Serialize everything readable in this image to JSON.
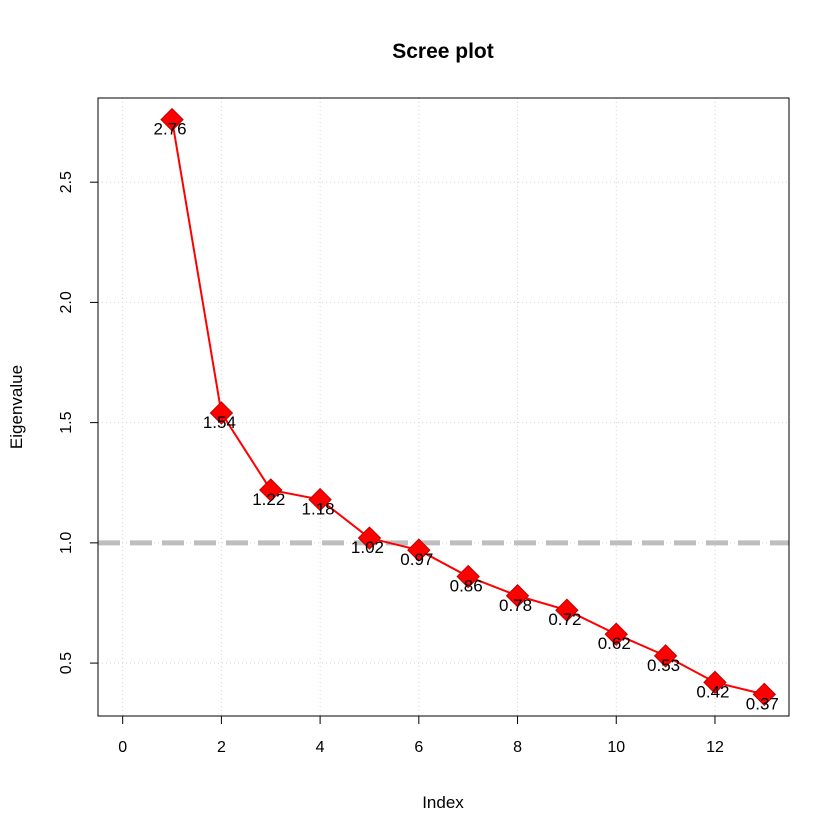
{
  "chart_data": {
    "type": "line",
    "title": "Scree plot",
    "xlabel": "Index",
    "ylabel": "Eigenvalue",
    "xlim": [
      -0.5,
      13.5
    ],
    "ylim": [
      0.28,
      2.85
    ],
    "x_ticks": [
      "0",
      "2",
      "4",
      "6",
      "8",
      "10",
      "12"
    ],
    "y_ticks": [
      "0.5",
      "1.0",
      "1.5",
      "2.0",
      "2.5"
    ],
    "grid": true,
    "reference_line": {
      "y": 1.0,
      "color": "#bebebe",
      "style": "dashed"
    },
    "series": [
      {
        "x": [
          1,
          2,
          3,
          4,
          5,
          6,
          7,
          8,
          9,
          10,
          11,
          12,
          13
        ],
        "values": [
          2.76,
          1.54,
          1.22,
          1.18,
          1.02,
          0.97,
          0.86,
          0.78,
          0.72,
          0.62,
          0.53,
          0.42,
          0.37
        ],
        "labels": [
          "2.76",
          "1.54",
          "1.22",
          "1.18",
          "1.02",
          "0.97",
          "0.86",
          "0.78",
          "0.72",
          "0.62",
          "0.53",
          "0.42",
          "0.37"
        ],
        "color": "#ff0000",
        "marker": "diamond"
      }
    ]
  }
}
